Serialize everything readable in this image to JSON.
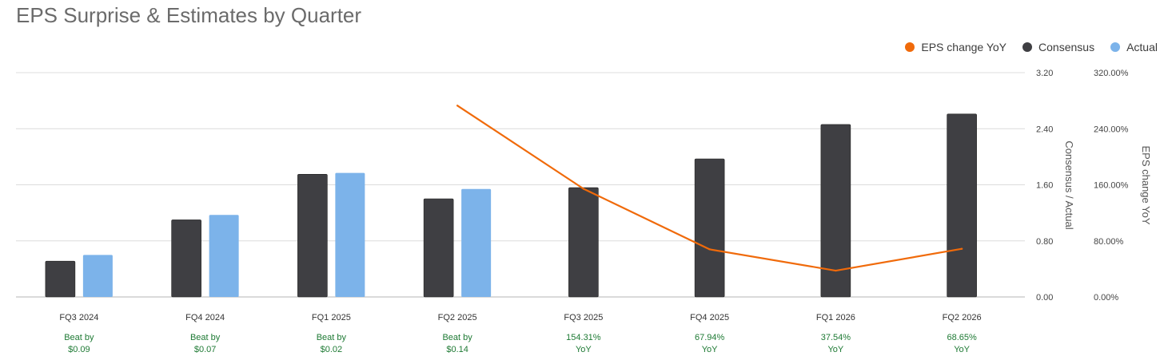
{
  "title": "EPS Surprise & Estimates by Quarter",
  "colors": {
    "consensus": "#3f3f43",
    "actual": "#7cb3ea",
    "change": "#f06a0a",
    "annotation": "#1e7a34"
  },
  "chart_data": {
    "type": "bar",
    "title": "EPS Surprise & Estimates by Quarter",
    "categories": [
      "FQ3 2024",
      "FQ4 2024",
      "FQ1 2025",
      "FQ2 2025",
      "FQ3 2025",
      "FQ4 2025",
      "FQ1 2026",
      "FQ2 2026"
    ],
    "series": [
      {
        "name": "Consensus",
        "type": "bar",
        "axis": "left",
        "values": [
          0.51,
          1.1,
          1.75,
          1.4,
          1.56,
          1.97,
          2.46,
          2.61
        ]
      },
      {
        "name": "Actual",
        "type": "bar",
        "axis": "left",
        "values": [
          0.6,
          1.17,
          1.77,
          1.54,
          null,
          null,
          null,
          null
        ]
      },
      {
        "name": "EPS change YoY",
        "type": "line",
        "axis": "right",
        "values": [
          null,
          null,
          null,
          273,
          154.31,
          67.94,
          37.54,
          68.65
        ]
      }
    ],
    "annotations": [
      [
        "Beat by",
        "$0.09"
      ],
      [
        "Beat by",
        "$0.07"
      ],
      [
        "Beat by",
        "$0.02"
      ],
      [
        "Beat by",
        "$0.14"
      ],
      [
        "154.31%",
        "YoY"
      ],
      [
        "67.94%",
        "YoY"
      ],
      [
        "37.54%",
        "YoY"
      ],
      [
        "68.65%",
        "YoY"
      ]
    ],
    "ylabel": "Consensus / Actual",
    "y2label": "EPS change YoY",
    "ylim": [
      0,
      3.2
    ],
    "y2lim": [
      0,
      320
    ],
    "yticks": [
      "0.00",
      "0.80",
      "1.60",
      "2.40",
      "3.20"
    ],
    "y2ticks": [
      "0.00%",
      "80.00%",
      "160.00%",
      "240.00%",
      "320.00%"
    ],
    "grid": true,
    "legend": "top-right"
  }
}
